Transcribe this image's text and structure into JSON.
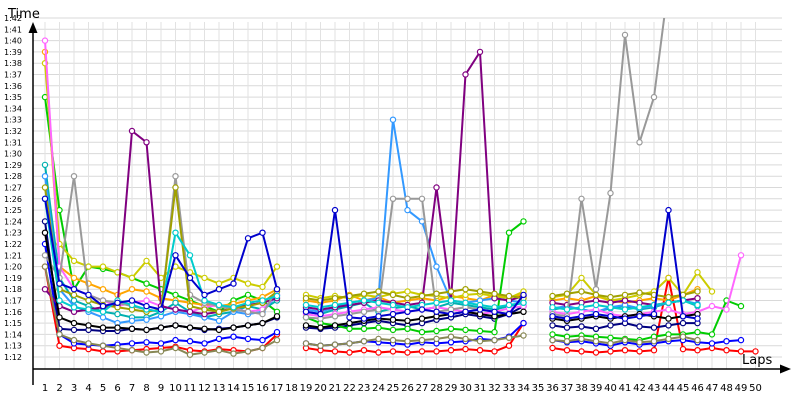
{
  "chart_data": {
    "type": "line",
    "title": "",
    "xlabel": "Laps",
    "ylabel": "Time",
    "grid": true,
    "legend": "none",
    "x": [
      1,
      2,
      3,
      4,
      5,
      6,
      7,
      8,
      9,
      10,
      11,
      12,
      13,
      14,
      15,
      16,
      17,
      18,
      19,
      20,
      21,
      22,
      23,
      24,
      25,
      26,
      27,
      28,
      29,
      30,
      31,
      32,
      33,
      34,
      35,
      36,
      37,
      38,
      39,
      40,
      41,
      42,
      43,
      44,
      45,
      46,
      47,
      48,
      49,
      50
    ],
    "x_tick_labels": [
      "1",
      "2",
      "3",
      "4",
      "5",
      "6",
      "7",
      "8",
      "9",
      "10",
      "11",
      "12",
      "13",
      "14",
      "15",
      "16",
      "17",
      "18",
      "19",
      "20",
      "21",
      "22",
      "23",
      "24",
      "25",
      "26",
      "27",
      "28",
      "29",
      "30",
      "31",
      "32",
      "33",
      "34",
      "35",
      "36",
      "37",
      "38",
      "39",
      "40",
      "41",
      "42",
      "43",
      "44",
      "45",
      "46",
      "47",
      "48",
      "49",
      "50"
    ],
    "y_unit": "seconds",
    "ylim": [
      70,
      105
    ],
    "y_tick_labels": [
      "1:12",
      "1:13",
      "1:14",
      "1:15",
      "1:16",
      "1:17",
      "1:18",
      "1:19",
      "1:20",
      "1:21",
      "1:22",
      "1:23",
      "1:24",
      "1:25",
      "1:26",
      "1:27",
      "1:28",
      "1:29",
      "1:30",
      "1:31",
      "1:32",
      "1:33",
      "1:34",
      "1:35",
      "1:36",
      "1:37",
      "1:38",
      "1:39",
      "1:40",
      "1:41",
      "1:42"
    ],
    "y_tick_values": [
      72,
      73,
      74,
      75,
      76,
      77,
      78,
      79,
      80,
      81,
      82,
      83,
      84,
      85,
      86,
      87,
      88,
      89,
      90,
      91,
      92,
      93,
      94,
      95,
      96,
      97,
      98,
      99,
      100,
      101,
      102
    ],
    "series": [
      {
        "color": "#ff0000",
        "values": [
          80,
          73,
          72.8,
          72.7,
          72.5,
          72.5,
          72.6,
          72.7,
          72.8,
          72.9,
          72.6,
          72.5,
          72.7,
          72.6,
          72.5,
          72.8,
          74,
          null,
          72.8,
          72.6,
          72.5,
          72.4,
          72.6,
          72.4,
          72.5,
          72.4,
          72.5,
          72.5,
          72.6,
          72.7,
          72.6,
          72.5,
          73,
          75,
          null,
          72.8,
          72.6,
          72.5,
          72.4,
          72.5,
          72.6,
          72.5,
          72.6,
          79,
          72.7,
          72.6,
          72.8,
          72.6,
          72.5,
          72.5
        ]
      },
      {
        "color": "#0000ff",
        "values": [
          82,
          74,
          73.2,
          73.1,
          73,
          73.1,
          73.2,
          73.3,
          73.2,
          73.5,
          73.4,
          73.2,
          73.6,
          73.8,
          73.6,
          73.5,
          74.2,
          null,
          73.2,
          73,
          73.1,
          73.2,
          73.4,
          73.3,
          73.2,
          73.1,
          73.3,
          73.2,
          73.3,
          73.4,
          73.6,
          73.5,
          73.8,
          75,
          null,
          73.5,
          73.3,
          73.4,
          73.2,
          73,
          73.3,
          73.1,
          73.2,
          73.4,
          73.5,
          73.3,
          73.2,
          73.4,
          73.5,
          null
        ]
      },
      {
        "color": "#000080",
        "values": [
          84,
          74.5,
          74.4,
          74.4,
          74.3,
          74.3,
          74.5,
          74.4,
          74.6,
          74.8,
          74.6,
          74.4,
          74.5,
          74.6,
          74.8,
          75,
          75.5,
          null,
          74.6,
          74.5,
          74.6,
          74.8,
          75,
          75.2,
          75,
          74.8,
          75,
          75.3,
          75.5,
          75.8,
          75.6,
          75.4,
          75.8,
          76.5,
          null,
          74.8,
          74.6,
          74.7,
          74.5,
          74.8,
          75,
          74.7,
          74.6,
          74.8,
          75,
          75,
          null,
          null,
          null,
          null
        ]
      },
      {
        "color": "#00cc00",
        "values": [
          95,
          85,
          78,
          80,
          79.8,
          79.5,
          79,
          78.5,
          78,
          77.5,
          77,
          76.5,
          76,
          77,
          77.5,
          77,
          76,
          null,
          75.5,
          75,
          74.8,
          74.5,
          74.5,
          74.6,
          74.4,
          74.5,
          74.2,
          74.3,
          74.5,
          74.4,
          74.3,
          74.2,
          83,
          84,
          null,
          74,
          73.8,
          73.9,
          73.8,
          73.7,
          73.6,
          73.5,
          73.8,
          74,
          74,
          74.2,
          74,
          77,
          76.5,
          null
        ]
      },
      {
        "color": "#ffa500",
        "values": [
          99,
          80,
          79,
          78.5,
          78,
          77.5,
          78,
          77.8,
          77.2,
          77,
          76.8,
          76.6,
          76.5,
          76.7,
          77,
          77.3,
          78,
          null,
          77,
          76.8,
          77,
          77.5,
          77,
          77.3,
          76.8,
          77,
          77.2,
          77,
          77.4,
          77.2,
          77,
          77.5,
          77.3,
          77.5,
          null,
          77,
          77.2,
          77,
          77.4,
          77,
          76.8,
          77,
          77.2,
          77,
          77.5,
          78,
          null,
          null,
          null,
          null
        ]
      },
      {
        "color": "#cccc00",
        "values": [
          98,
          82,
          80.5,
          80,
          80,
          79.5,
          79,
          80.5,
          79,
          80,
          79.5,
          79,
          78.5,
          79,
          78.5,
          78.2,
          80,
          null,
          77.5,
          77.2,
          77.4,
          77.2,
          77.5,
          77.3,
          77.6,
          77.8,
          77.5,
          77.4,
          77.2,
          77.5,
          77.6,
          77.4,
          77.2,
          77.8,
          null,
          77.3,
          77.5,
          79,
          77.5,
          77,
          77.2,
          77.5,
          77.8,
          79,
          77.5,
          79.5,
          77.8,
          null,
          null,
          null
        ]
      },
      {
        "color": "#00b0b0",
        "values": [
          89,
          79,
          77,
          76.5,
          76,
          75.8,
          75.5,
          75.5,
          76,
          76.8,
          76,
          75.5,
          75.8,
          76,
          76.5,
          76.2,
          77,
          null,
          76,
          75.8,
          76.2,
          76.5,
          76.8,
          76,
          76.3,
          76.5,
          76.2,
          76.4,
          76.8,
          76.6,
          76.4,
          76.2,
          76.5,
          76.8,
          null,
          76.2,
          76.4,
          76.2,
          76,
          76.3,
          76.5,
          76.2,
          76.4,
          76.8,
          77,
          76.5,
          null,
          null,
          null,
          null
        ]
      },
      {
        "color": "#3399ff",
        "values": [
          88,
          78,
          76.5,
          76,
          75.5,
          75,
          75.2,
          75.3,
          75.6,
          76,
          75.8,
          75.5,
          75.2,
          76,
          75.8,
          76,
          77.5,
          null,
          76.2,
          76,
          76.4,
          76.8,
          77,
          77.2,
          93,
          85,
          84,
          80,
          77,
          76.8,
          77,
          77.2,
          77,
          76.8,
          null,
          76.3,
          76.5,
          76.2,
          76,
          76.4,
          76.6,
          76.3,
          76.5,
          76.8,
          77,
          76.7,
          null,
          null,
          null,
          null
        ]
      },
      {
        "color": "#ff66ff",
        "values": [
          100,
          80,
          78,
          77.5,
          77,
          76.5,
          76.8,
          77,
          76.5,
          76.2,
          76,
          76.4,
          76.6,
          76.3,
          76,
          76.2,
          77.5,
          null,
          75.8,
          75.6,
          75.8,
          76,
          76.2,
          76.4,
          76.2,
          76,
          76.2,
          76.4,
          76.2,
          76,
          75.8,
          76,
          76.3,
          76.5,
          null,
          76,
          75.8,
          76,
          76.2,
          75.8,
          75.6,
          75.8,
          76,
          76.2,
          75.8,
          76,
          76.5,
          76.2,
          81,
          null
        ]
      },
      {
        "color": "#800080",
        "values": [
          78,
          76.5,
          76,
          76.2,
          76.4,
          76.6,
          92,
          91,
          76.5,
          76.2,
          76,
          75.8,
          76,
          76.4,
          76.6,
          76.8,
          77.2,
          null,
          76.4,
          76.2,
          76.4,
          76.6,
          76.8,
          77,
          76.8,
          76.6,
          76.8,
          87,
          77,
          97,
          99,
          77.2,
          77,
          77.4,
          null,
          76.8,
          76.6,
          76.8,
          77,
          76.8,
          77,
          76.8,
          76.6,
          76.8,
          77,
          77.2,
          null,
          null,
          null,
          null
        ]
      },
      {
        "color": "#999999",
        "values": [
          81,
          79,
          88,
          77.5,
          77,
          76.8,
          76.5,
          76.2,
          76,
          88,
          77.5,
          76.8,
          76.5,
          76.2,
          76,
          75.8,
          78,
          null,
          75.5,
          75.4,
          75.6,
          75.8,
          76,
          76.2,
          86,
          86,
          86,
          76,
          76.2,
          76.4,
          76.2,
          76,
          75.8,
          76,
          null,
          75.8,
          75.6,
          86,
          78,
          86.5,
          100.5,
          91,
          95,
          105,
          null,
          null,
          null,
          null,
          null,
          null
        ]
      },
      {
        "color": "#888855",
        "values": [
          80,
          74,
          73.5,
          73.2,
          73,
          72.8,
          72.6,
          72.4,
          72.5,
          72.8,
          72.2,
          72.4,
          72.6,
          72.3,
          72.5,
          72.8,
          73.5,
          null,
          73.2,
          73,
          73.1,
          73.2,
          73.4,
          73.6,
          73.5,
          73.4,
          73.5,
          73.6,
          73.8,
          73.6,
          73.4,
          73.5,
          73.7,
          73.9,
          null,
          73.5,
          73.4,
          73.6,
          73.4,
          73.2,
          73.5,
          73.3,
          73.4,
          73.6,
          73.8,
          73.5,
          null,
          null,
          null,
          null
        ]
      },
      {
        "color": "#000000",
        "values": [
          83,
          75.5,
          75,
          74.8,
          74.6,
          74.6,
          74.5,
          74.4,
          74.6,
          74.8,
          74.6,
          74.5,
          74.4,
          74.6,
          74.8,
          75,
          75.6,
          null,
          74.8,
          74.6,
          74.8,
          75,
          75.2,
          75.4,
          75.3,
          75.2,
          75.4,
          75.6,
          75.8,
          76,
          75.8,
          75.6,
          75.8,
          76,
          null,
          75.4,
          75.2,
          75.4,
          75.6,
          75.4,
          75.6,
          75.8,
          75.6,
          75.4,
          75.6,
          75.8,
          null,
          null,
          null,
          null
        ]
      },
      {
        "color": "#a0a000",
        "values": [
          87,
          78,
          77.5,
          77,
          76.6,
          76.4,
          76.2,
          76,
          76.2,
          87,
          76.5,
          76.2,
          76,
          76.3,
          76.5,
          76.8,
          77.8,
          null,
          77.2,
          77,
          77.2,
          77.4,
          77.6,
          77.8,
          77.5,
          77.2,
          77.4,
          77.6,
          77.8,
          78,
          77.8,
          77.6,
          77.4,
          77.2,
          null,
          77.4,
          77.6,
          77.8,
          77.5,
          77.3,
          77.5,
          77.7,
          77.5,
          77.3,
          77.5,
          77.8,
          null,
          null,
          null,
          null
        ]
      },
      {
        "color": "#00cccc",
        "values": [
          86,
          77,
          76.4,
          76.2,
          76,
          77,
          76.6,
          76.2,
          76,
          83,
          81,
          77,
          76.6,
          76.4,
          76.8,
          77,
          77.4,
          null,
          76.6,
          76.4,
          76.6,
          76.8,
          77,
          76.8,
          76.6,
          76.4,
          76.6,
          76.8,
          77,
          76.8,
          76.6,
          76.4,
          76.6,
          76.8,
          null,
          76.4,
          76.2,
          76.4,
          76.6,
          76.4,
          76.2,
          76.4,
          76.6,
          76.8,
          77,
          76.6,
          null,
          null,
          null,
          null
        ]
      },
      {
        "color": "#0000cc",
        "values": [
          86,
          78.5,
          78,
          77.5,
          76.5,
          76.8,
          77,
          76.5,
          76.2,
          81,
          79,
          77.5,
          78,
          78.5,
          82.5,
          83,
          78,
          null,
          76,
          75.8,
          85,
          75.5,
          75.4,
          75.6,
          75.8,
          76,
          76.2,
          76,
          75.8,
          76,
          76.2,
          76,
          75.8,
          77.5,
          null,
          75.6,
          75.4,
          75.6,
          75.8,
          75.6,
          75.4,
          75.6,
          75.8,
          85,
          75.6,
          75.4,
          null,
          null,
          null,
          null
        ]
      }
    ]
  }
}
